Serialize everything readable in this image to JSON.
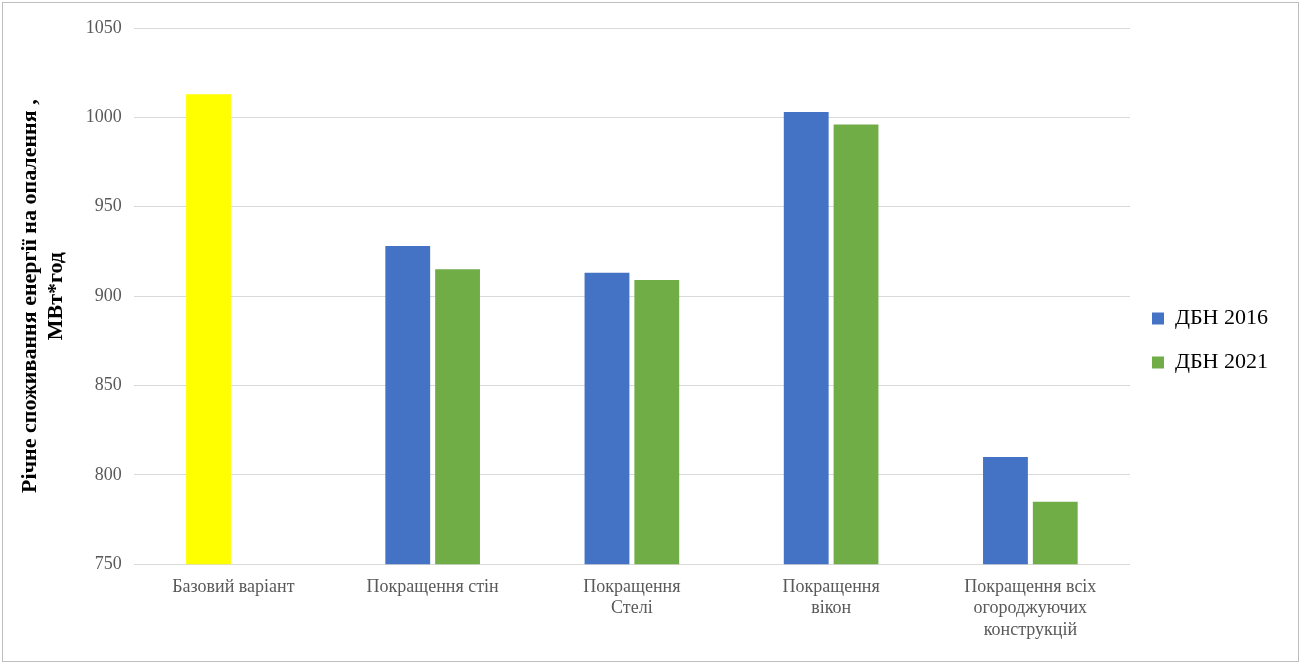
{
  "chart_data": {
    "type": "bar",
    "ylabel": "Річне споживання енергії на опалення , МВт*год",
    "categories": [
      "Базовий варіант",
      "Покращення стін",
      "Покращення Стелі",
      "Покращення вікон",
      "Покращення всіх огороджуючих конструкцій"
    ],
    "series": [
      {
        "name": "ДБН 2016",
        "color": "#4472c4",
        "colors": [
          "#ffff00",
          "#4472c4",
          "#4472c4",
          "#4472c4",
          "#4472c4"
        ],
        "values": [
          1013,
          928,
          913,
          1003,
          810
        ]
      },
      {
        "name": "ДБН 2021",
        "color": "#70ad47",
        "values": [
          null,
          915,
          909,
          996,
          785
        ]
      }
    ],
    "ylim": [
      750,
      1050
    ],
    "yticks": [
      750,
      800,
      850,
      900,
      950,
      1000,
      1050
    ],
    "grid": "y",
    "legend": "right"
  }
}
